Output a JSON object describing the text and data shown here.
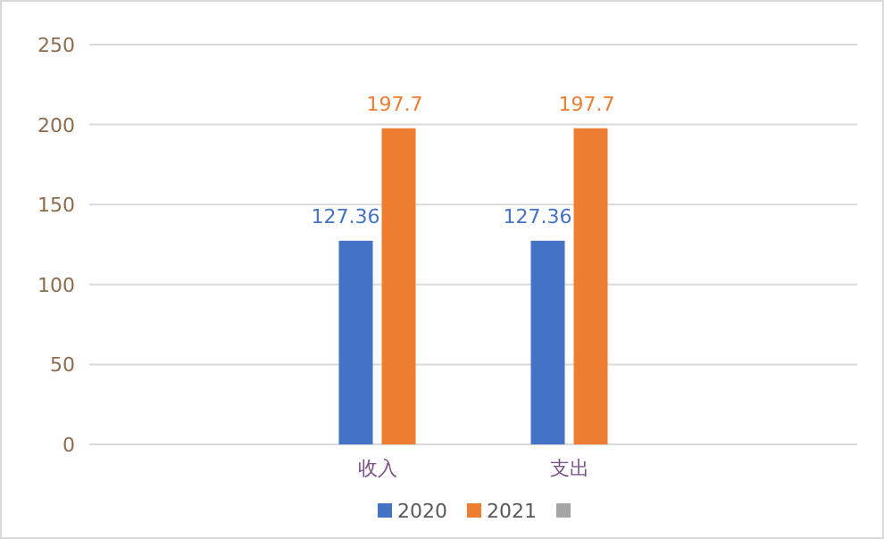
{
  "chart_data": {
    "type": "bar",
    "categories": [
      null,
      "收入",
      "支出",
      null
    ],
    "series": [
      {
        "name": "2020",
        "color": "#4472c4",
        "values": [
          null,
          127.36,
          127.36,
          null
        ]
      },
      {
        "name": "2021",
        "color": "#ed7d31",
        "values": [
          null,
          197.7,
          197.7,
          null
        ]
      },
      {
        "color": "#a5a5a5",
        "values": [
          null,
          null,
          null,
          null
        ]
      }
    ],
    "ylim": [
      0,
      250
    ],
    "yticks": [
      0,
      50,
      100,
      150,
      200,
      250
    ],
    "grid": "y",
    "legend": "bottom",
    "data_labels": true
  }
}
